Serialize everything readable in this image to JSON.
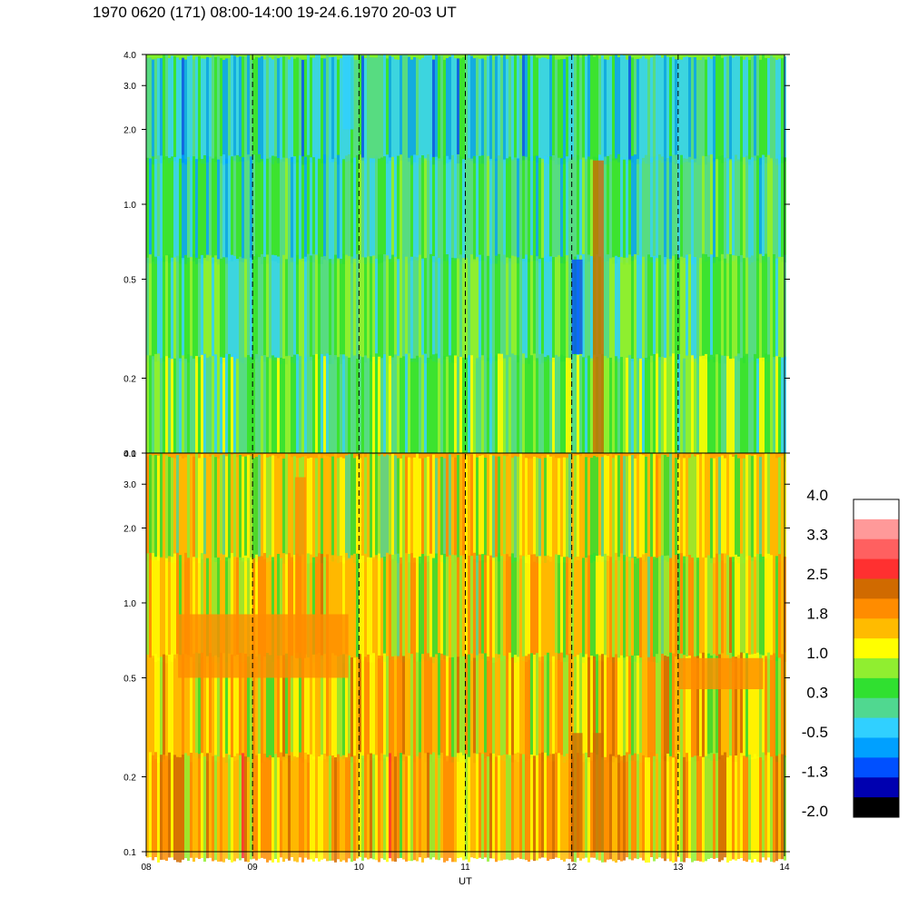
{
  "title": "1970 0620 (171) 08:00-14:00 19-24.6.1970  20-03 UT",
  "chart_data": {
    "type": "heatmap",
    "title": "1970 0620 (171) 08:00-14:00 19-24.6.1970  20-03 UT",
    "xlabel": "UT",
    "ylabel": "",
    "x_ticks": [
      "08",
      "09",
      "10",
      "11",
      "12",
      "13",
      "14"
    ],
    "xlim": [
      8,
      14
    ],
    "x_gridlines": [
      9,
      10,
      11,
      12,
      13
    ],
    "grid": "dashed vertical lines at each hour",
    "y_scale": "log",
    "ylim": [
      0.1,
      4.0
    ],
    "y_ticks": [
      0.1,
      0.2,
      0.5,
      1.0,
      2.0,
      3.0,
      4.0
    ],
    "y_tick_labels": [
      "0.1",
      "0.2",
      "0.5",
      "1.0",
      "2.0",
      "3.0",
      "4.0"
    ],
    "panels": [
      {
        "name": "upper",
        "dominant_levels": [
          0.3,
          1.0
        ],
        "background_color": "#7ef02a",
        "features": [
          {
            "x": 12.25,
            "y_range": [
              0.1,
              1.5
            ],
            "level": 2.5
          },
          {
            "x": 12.05,
            "y_range": [
              0.25,
              0.6
            ],
            "level": -1.3
          },
          {
            "x": 9.9,
            "y_range": [
              2.0,
              4.0
            ],
            "level": -0.5
          }
        ]
      },
      {
        "name": "lower",
        "dominant_levels": [
          1.0,
          1.8,
          2.2
        ],
        "background_color": "#ffa500",
        "features": [
          {
            "x": 12.05,
            "y_range": [
              0.1,
              0.3
            ],
            "level": 2.5
          },
          {
            "x": 12.25,
            "y_range": [
              0.1,
              0.3
            ],
            "level": 2.5
          },
          {
            "x": 9.45,
            "y_range": [
              0.6,
              3.2
            ],
            "level": 2.2
          },
          {
            "x_range": [
              8.3,
              9.9
            ],
            "y_range": [
              0.5,
              0.9
            ],
            "level": 2.2
          },
          {
            "x_range": [
              13.0,
              13.8
            ],
            "y_range": [
              0.45,
              0.6
            ],
            "level": 2.2
          }
        ]
      }
    ],
    "colorbar": {
      "labels": [
        "4.0",
        "3.3",
        "2.5",
        "1.8",
        "1.0",
        "0.3",
        "-0.5",
        "-1.3",
        "-2.0"
      ],
      "colors": [
        "#ffffff",
        "#ff9999",
        "#ff6060",
        "#ff3030",
        "#d06a00",
        "#ff8c00",
        "#ffbb00",
        "#ffff00",
        "#90ee30",
        "#30e030",
        "#50d890",
        "#30d0ff",
        "#00a0ff",
        "#0050ff",
        "#0000b0",
        "#000000"
      ]
    }
  }
}
